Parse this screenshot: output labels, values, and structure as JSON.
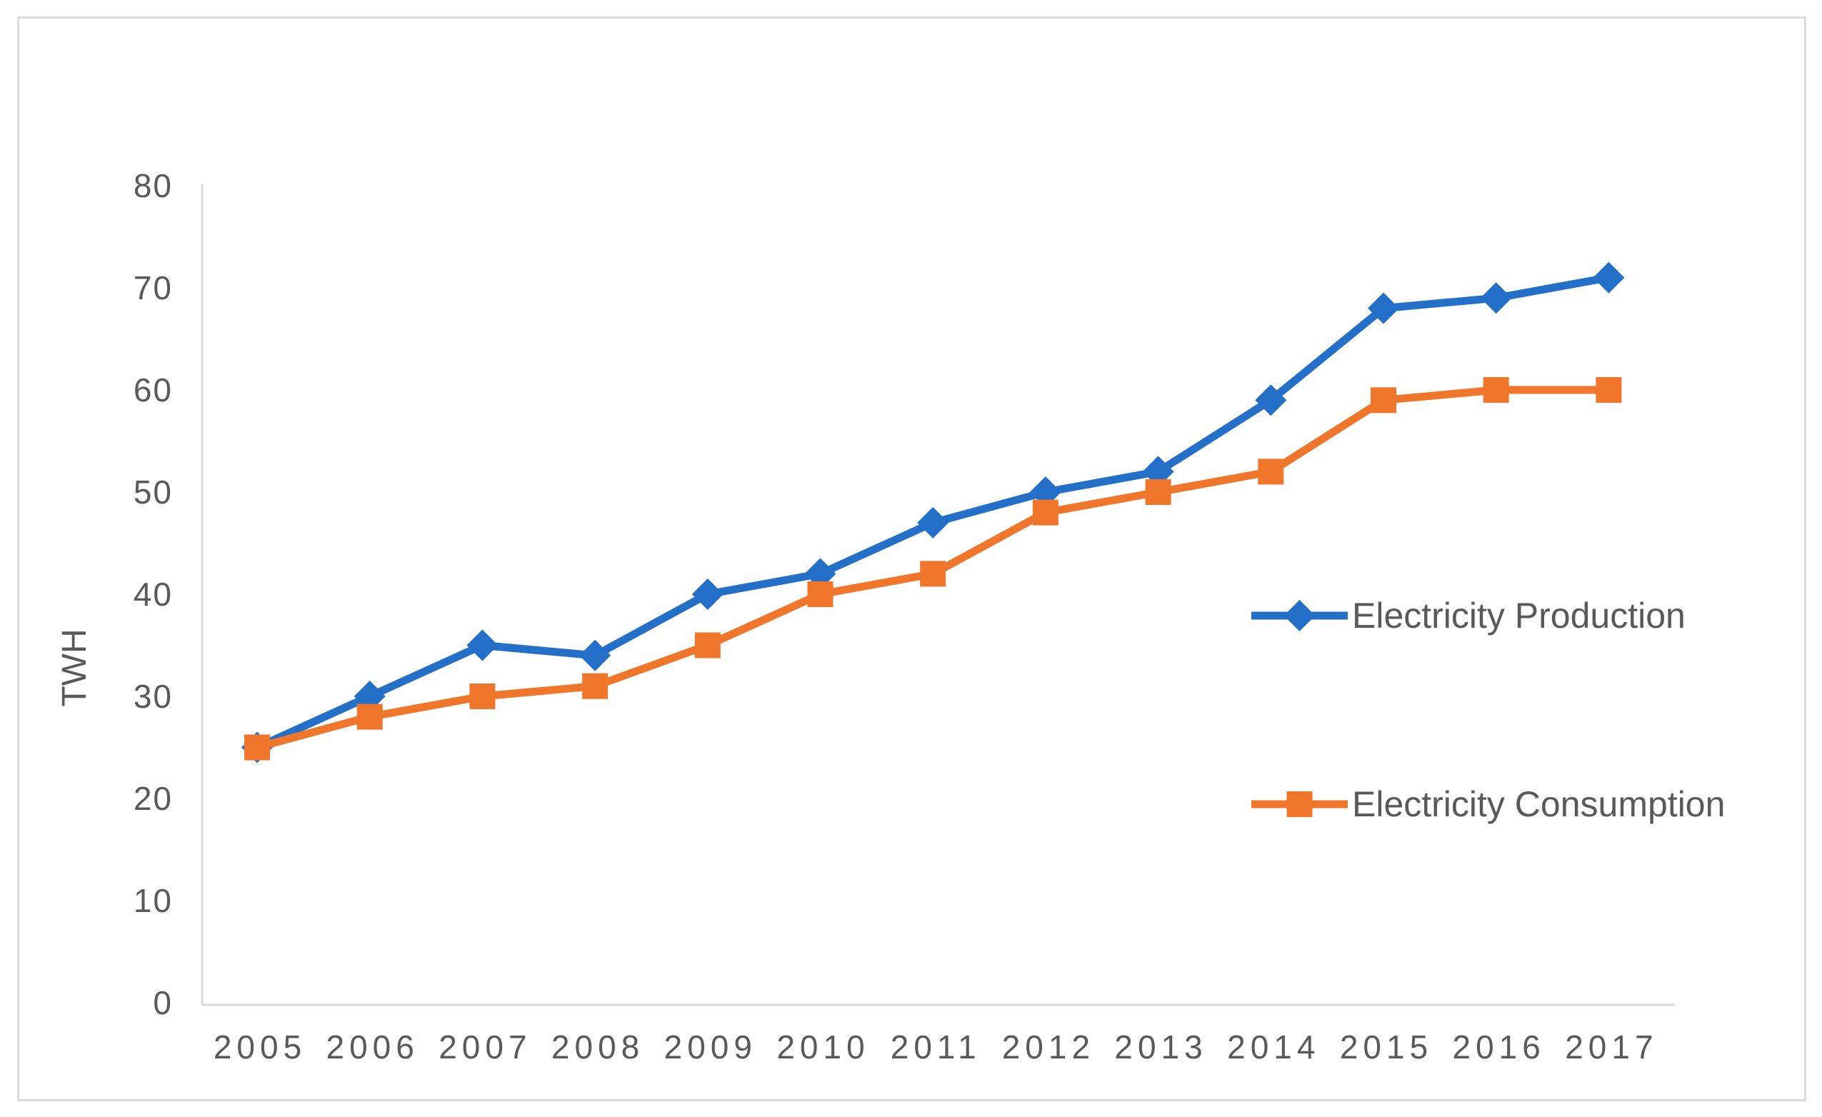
{
  "chart_data": {
    "type": "line",
    "title": "",
    "xlabel": "",
    "ylabel": "TWH",
    "ylim": [
      0,
      80
    ],
    "ytick_step": 10,
    "yticks": [
      0,
      10,
      20,
      30,
      40,
      50,
      60,
      70,
      80
    ],
    "grid": false,
    "legend_position": "inside-right",
    "categories": [
      "2005",
      "2006",
      "2007",
      "2008",
      "2009",
      "2010",
      "2011",
      "2012",
      "2013",
      "2014",
      "2015",
      "2016",
      "2017"
    ],
    "series": [
      {
        "name": "Electricity Production",
        "marker": "diamond",
        "color": "#2470C8",
        "values": [
          25,
          30,
          35,
          34,
          40,
          42,
          47,
          50,
          52,
          59,
          68,
          69,
          71
        ]
      },
      {
        "name": "Electricity Consumption",
        "marker": "square",
        "color": "#F0762B",
        "values": [
          25,
          28,
          30,
          31,
          35,
          40,
          42,
          48,
          50,
          52,
          59,
          60,
          60
        ]
      }
    ]
  },
  "styles": {
    "axis_color": "#d9d9d9",
    "text_color": "#595959",
    "frame_color": "#dcdcdc",
    "background": "#ffffff"
  }
}
